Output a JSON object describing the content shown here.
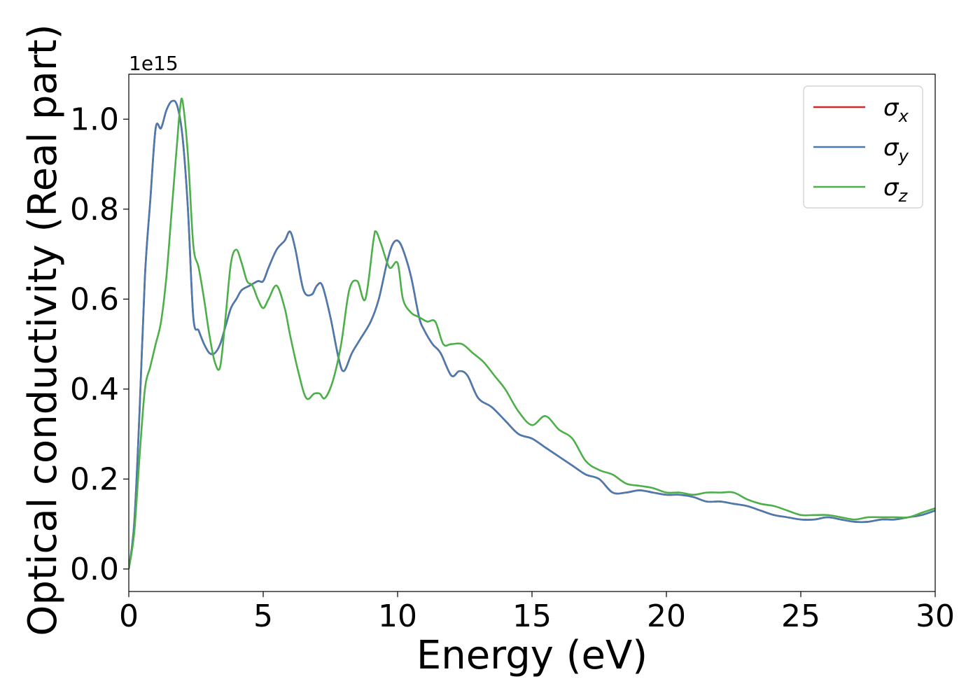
{
  "chart_data": {
    "type": "line",
    "title": "",
    "xlabel": "Energy (eV)",
    "ylabel": "Optical conductivity (Real part)",
    "y_offset_label": "1e15",
    "xlim": [
      0,
      30
    ],
    "ylim": [
      -0.05,
      1.1
    ],
    "x_ticks": [
      0,
      5,
      10,
      15,
      20,
      25,
      30
    ],
    "x_tick_labels": [
      "0",
      "5",
      "10",
      "15",
      "20",
      "25",
      "30"
    ],
    "y_ticks": [
      0.0,
      0.2,
      0.4,
      0.6,
      0.8,
      1.0
    ],
    "y_tick_labels": [
      "0.0",
      "0.2",
      "0.4",
      "0.6",
      "0.8",
      "1.0"
    ],
    "grid": false,
    "legend_position": "top-right",
    "series": [
      {
        "name": "σx",
        "symbol": "σ",
        "subscript": "x",
        "color": "#d62728",
        "x": [
          0,
          0.2,
          0.4,
          0.6,
          0.8,
          1.0,
          1.2,
          1.4,
          1.6,
          1.8,
          2.0,
          2.2,
          2.4,
          2.6,
          2.8,
          3.0,
          3.2,
          3.4,
          3.6,
          3.8,
          4.0,
          4.2,
          4.5,
          4.8,
          5.0,
          5.2,
          5.5,
          5.8,
          6.0,
          6.2,
          6.5,
          6.8,
          7.0,
          7.2,
          7.5,
          7.8,
          8.0,
          8.3,
          8.6,
          9.0,
          9.3,
          9.6,
          9.8,
          10.0,
          10.2,
          10.5,
          10.8,
          11.0,
          11.3,
          11.6,
          12.0,
          12.3,
          12.6,
          13.0,
          13.5,
          14.0,
          14.5,
          15.0,
          15.5,
          16.0,
          16.5,
          17.0,
          17.5,
          18.0,
          18.5,
          19.0,
          19.5,
          20.0,
          20.5,
          21.0,
          21.5,
          22.0,
          22.5,
          23.0,
          23.5,
          24.0,
          24.5,
          25.0,
          25.5,
          26.0,
          26.5,
          27.0,
          27.5,
          28.0,
          28.5,
          29.0,
          29.5,
          30.0
        ],
        "y": [
          0.0,
          0.1,
          0.35,
          0.65,
          0.82,
          0.98,
          0.98,
          1.02,
          1.04,
          1.03,
          0.96,
          0.8,
          0.56,
          0.53,
          0.5,
          0.48,
          0.48,
          0.5,
          0.54,
          0.58,
          0.6,
          0.62,
          0.63,
          0.64,
          0.64,
          0.67,
          0.71,
          0.73,
          0.75,
          0.71,
          0.62,
          0.61,
          0.63,
          0.63,
          0.56,
          0.47,
          0.44,
          0.48,
          0.51,
          0.55,
          0.6,
          0.68,
          0.72,
          0.73,
          0.71,
          0.65,
          0.56,
          0.53,
          0.5,
          0.48,
          0.43,
          0.44,
          0.43,
          0.38,
          0.36,
          0.33,
          0.3,
          0.29,
          0.27,
          0.25,
          0.23,
          0.21,
          0.2,
          0.17,
          0.17,
          0.175,
          0.17,
          0.165,
          0.165,
          0.16,
          0.15,
          0.15,
          0.145,
          0.14,
          0.13,
          0.12,
          0.115,
          0.11,
          0.11,
          0.115,
          0.11,
          0.105,
          0.105,
          0.11,
          0.11,
          0.115,
          0.12,
          0.13
        ]
      },
      {
        "name": "σy",
        "symbol": "σ",
        "subscript": "y",
        "color": "#4a7bb0",
        "x": [
          0,
          0.2,
          0.4,
          0.6,
          0.8,
          1.0,
          1.2,
          1.4,
          1.6,
          1.8,
          2.0,
          2.2,
          2.4,
          2.6,
          2.8,
          3.0,
          3.2,
          3.4,
          3.6,
          3.8,
          4.0,
          4.2,
          4.5,
          4.8,
          5.0,
          5.2,
          5.5,
          5.8,
          6.0,
          6.2,
          6.5,
          6.8,
          7.0,
          7.2,
          7.5,
          7.8,
          8.0,
          8.3,
          8.6,
          9.0,
          9.3,
          9.6,
          9.8,
          10.0,
          10.2,
          10.5,
          10.8,
          11.0,
          11.3,
          11.6,
          12.0,
          12.3,
          12.6,
          13.0,
          13.5,
          14.0,
          14.5,
          15.0,
          15.5,
          16.0,
          16.5,
          17.0,
          17.5,
          18.0,
          18.5,
          19.0,
          19.5,
          20.0,
          20.5,
          21.0,
          21.5,
          22.0,
          22.5,
          23.0,
          23.5,
          24.0,
          24.5,
          25.0,
          25.5,
          26.0,
          26.5,
          27.0,
          27.5,
          28.0,
          28.5,
          29.0,
          29.5,
          30.0
        ],
        "y": [
          0.0,
          0.1,
          0.35,
          0.65,
          0.82,
          0.98,
          0.98,
          1.02,
          1.04,
          1.03,
          0.96,
          0.8,
          0.56,
          0.53,
          0.5,
          0.48,
          0.48,
          0.5,
          0.54,
          0.58,
          0.6,
          0.62,
          0.63,
          0.64,
          0.64,
          0.67,
          0.71,
          0.73,
          0.75,
          0.71,
          0.62,
          0.61,
          0.63,
          0.63,
          0.56,
          0.47,
          0.44,
          0.48,
          0.51,
          0.55,
          0.6,
          0.68,
          0.72,
          0.73,
          0.71,
          0.65,
          0.56,
          0.53,
          0.5,
          0.48,
          0.43,
          0.44,
          0.43,
          0.38,
          0.36,
          0.33,
          0.3,
          0.29,
          0.27,
          0.25,
          0.23,
          0.21,
          0.2,
          0.17,
          0.17,
          0.175,
          0.17,
          0.165,
          0.165,
          0.16,
          0.15,
          0.15,
          0.145,
          0.14,
          0.13,
          0.12,
          0.115,
          0.11,
          0.11,
          0.115,
          0.11,
          0.105,
          0.105,
          0.11,
          0.11,
          0.115,
          0.12,
          0.13
        ]
      },
      {
        "name": "σz",
        "symbol": "σ",
        "subscript": "z",
        "color": "#4daf4a",
        "x": [
          0,
          0.2,
          0.4,
          0.6,
          0.8,
          1.0,
          1.2,
          1.4,
          1.6,
          1.8,
          1.9,
          2.0,
          2.2,
          2.4,
          2.6,
          2.8,
          3.0,
          3.2,
          3.4,
          3.6,
          3.8,
          4.0,
          4.2,
          4.4,
          4.6,
          4.8,
          5.0,
          5.2,
          5.5,
          5.8,
          6.0,
          6.3,
          6.6,
          6.9,
          7.1,
          7.3,
          7.6,
          7.9,
          8.2,
          8.5,
          8.8,
          9.1,
          9.2,
          9.4,
          9.7,
          10.0,
          10.2,
          10.5,
          10.8,
          11.1,
          11.4,
          11.7,
          12.0,
          12.4,
          12.8,
          13.2,
          13.6,
          14.0,
          14.5,
          15.0,
          15.5,
          16.0,
          16.5,
          17.0,
          17.5,
          18.0,
          18.5,
          19.0,
          19.5,
          20.0,
          20.5,
          21.0,
          21.5,
          22.0,
          22.5,
          23.0,
          23.5,
          24.0,
          24.5,
          25.0,
          25.5,
          26.0,
          26.5,
          27.0,
          27.5,
          28.0,
          28.5,
          29.0,
          29.5,
          30.0
        ],
        "y": [
          0.0,
          0.08,
          0.25,
          0.4,
          0.45,
          0.5,
          0.55,
          0.65,
          0.8,
          0.95,
          1.02,
          1.04,
          0.92,
          0.72,
          0.67,
          0.6,
          0.52,
          0.46,
          0.45,
          0.56,
          0.68,
          0.71,
          0.68,
          0.64,
          0.63,
          0.6,
          0.58,
          0.6,
          0.63,
          0.58,
          0.52,
          0.44,
          0.38,
          0.39,
          0.39,
          0.38,
          0.42,
          0.5,
          0.62,
          0.64,
          0.6,
          0.73,
          0.75,
          0.72,
          0.67,
          0.68,
          0.6,
          0.57,
          0.56,
          0.55,
          0.55,
          0.5,
          0.5,
          0.5,
          0.48,
          0.46,
          0.43,
          0.4,
          0.35,
          0.32,
          0.34,
          0.31,
          0.29,
          0.24,
          0.22,
          0.21,
          0.19,
          0.185,
          0.18,
          0.17,
          0.17,
          0.165,
          0.17,
          0.17,
          0.17,
          0.155,
          0.145,
          0.14,
          0.13,
          0.12,
          0.12,
          0.12,
          0.115,
          0.11,
          0.115,
          0.115,
          0.115,
          0.115,
          0.125,
          0.135
        ]
      }
    ]
  }
}
